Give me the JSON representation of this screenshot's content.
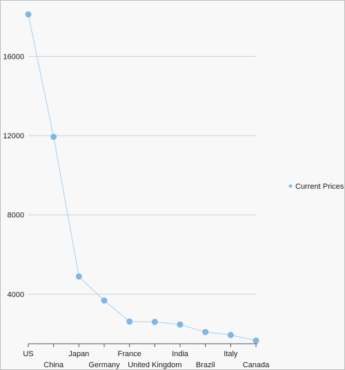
{
  "chart_data": {
    "type": "line",
    "title": "",
    "xlabel": "",
    "ylabel": "",
    "categories": [
      "US",
      "China",
      "Japan",
      "Germany",
      "France",
      "United Kingdom",
      "India",
      "Brazil",
      "Italy",
      "Canada"
    ],
    "series": [
      {
        "name": "Current Prices",
        "values": [
          18120,
          11940,
          4890,
          3680,
          2620,
          2600,
          2470,
          2090,
          1940,
          1660
        ]
      }
    ],
    "ylim": [
      1500,
      18600
    ],
    "yticks": [
      4000,
      8000,
      12000,
      16000
    ],
    "grid": true,
    "legend_position": "right",
    "colors": {
      "series": "#7fb6e6",
      "line": "#a9cdea",
      "grid": "#d0d0d0",
      "axis": "#555555"
    }
  }
}
